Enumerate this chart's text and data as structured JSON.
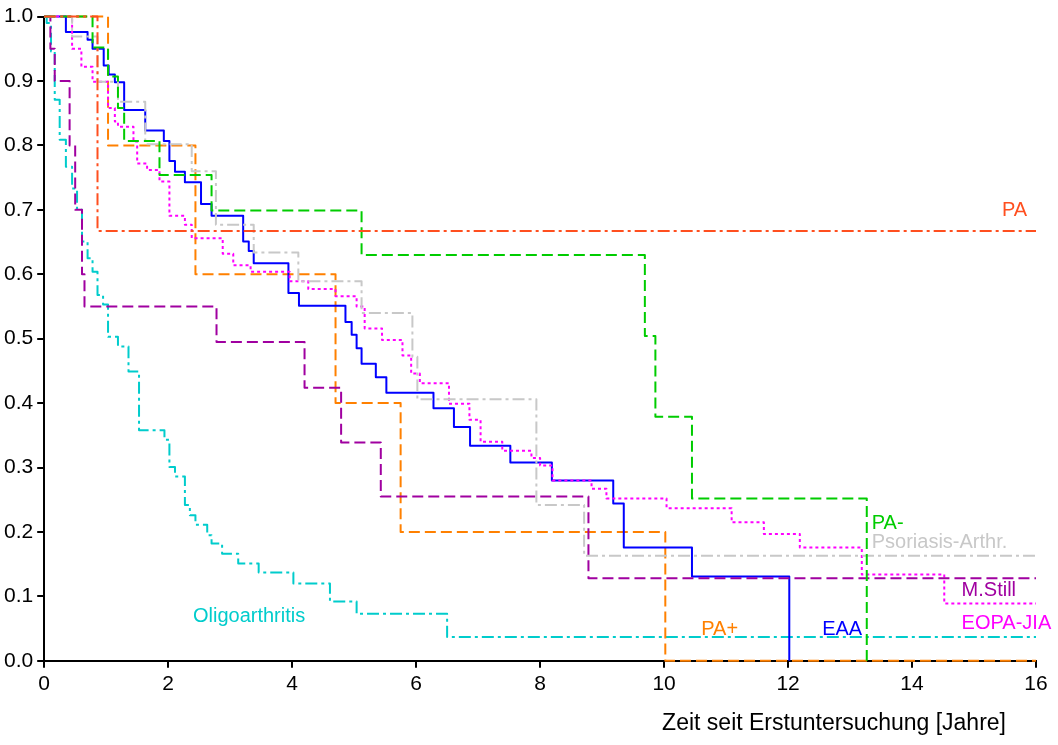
{
  "chart_data": {
    "type": "step",
    "xlabel": "Zeit seit Erstuntersuchung [Jahre]",
    "xlim": [
      0,
      16
    ],
    "xticks": [
      0,
      2,
      4,
      6,
      8,
      10,
      12,
      14,
      16
    ],
    "ylim": [
      0,
      1
    ],
    "yticks": [
      {
        "value": 0,
        "label": "0.0"
      },
      0.1,
      0.2,
      0.3,
      0.4,
      0.5,
      0.6,
      0.7,
      0.8,
      0.9,
      {
        "value": 1,
        "label": "1.0"
      }
    ],
    "grid": false,
    "legend": false,
    "marker": "none",
    "series": [
      {
        "name": "PA",
        "color": "#ff4f1f",
        "line_style": "dashdot",
        "x": [
          0,
          0.86,
          16
        ],
        "values": [
          1,
          0.667,
          0.667
        ]
      },
      {
        "name": "PA-",
        "color": "#00cc00",
        "line_style": "dashed",
        "x": [
          0,
          0.78,
          1.03,
          1.19,
          1.29,
          1.86,
          2.7,
          5.12,
          9.69,
          9.86,
          10.45,
          13.27
        ],
        "values": [
          1,
          0.952,
          0.907,
          0.858,
          0.807,
          0.754,
          0.699,
          0.63,
          0.504,
          0.379,
          0.252,
          0
        ]
      },
      {
        "name": "Psoriasis-Arthr.",
        "color": "#c8c8c8",
        "line_style": "dashdot",
        "x": [
          0,
          0.45,
          0.86,
          1.19,
          1.63,
          2.38,
          2.77,
          3.38,
          4.1,
          5.12,
          5.94,
          6.02,
          7.94,
          8.71,
          16
        ],
        "values": [
          1,
          0.969,
          0.899,
          0.868,
          0.802,
          0.76,
          0.677,
          0.634,
          0.589,
          0.54,
          0.472,
          0.406,
          0.242,
          0.163,
          0.163
        ]
      },
      {
        "name": "M.Still",
        "color": "#a000a0",
        "line_style": "dashed",
        "x": [
          0,
          0.1,
          0.17,
          0.41,
          0.5,
          0.61,
          0.65,
          2.78,
          4.2,
          4.79,
          5.43,
          8.78,
          16
        ],
        "values": [
          1,
          0.95,
          0.9,
          0.8,
          0.7,
          0.6,
          0.55,
          0.495,
          0.424,
          0.339,
          0.255,
          0.128,
          0.128
        ]
      },
      {
        "name": "EOPA-JIA",
        "color": "#ff00ff",
        "line_style": "dotted",
        "x": [
          0,
          0.45,
          0.6,
          0.78,
          1.03,
          1.14,
          1.19,
          1.44,
          1.5,
          1.66,
          1.86,
          2.02,
          2.27,
          2.38,
          2.88,
          3.05,
          3.33,
          3.96,
          4.26,
          4.7,
          5.04,
          5.17,
          5.45,
          5.78,
          5.92,
          6.06,
          6.53,
          6.86,
          7.04,
          7.39,
          7.86,
          8.0,
          8.2,
          8.83,
          9.07,
          10.04,
          11.09,
          11.61,
          12.19,
          13.19,
          14.52,
          16
        ],
        "values": [
          1,
          0.95,
          0.922,
          0.899,
          0.858,
          0.837,
          0.829,
          0.806,
          0.772,
          0.762,
          0.744,
          0.691,
          0.677,
          0.656,
          0.632,
          0.614,
          0.604,
          0.589,
          0.577,
          0.566,
          0.55,
          0.516,
          0.498,
          0.474,
          0.446,
          0.431,
          0.399,
          0.374,
          0.34,
          0.326,
          0.315,
          0.303,
          0.28,
          0.267,
          0.252,
          0.237,
          0.215,
          0.197,
          0.176,
          0.134,
          0.089,
          0.089
        ]
      },
      {
        "name": "EAA",
        "color": "#0000ff",
        "line_style": "solid",
        "x": [
          0,
          0.35,
          0.7,
          0.78,
          0.96,
          1.04,
          1.14,
          1.29,
          1.63,
          1.93,
          2.02,
          2.11,
          2.27,
          2.53,
          2.7,
          3.21,
          3.3,
          3.38,
          3.94,
          4.11,
          4.86,
          4.96,
          5.04,
          5.12,
          5.35,
          5.52,
          6.28,
          6.61,
          6.87,
          7.52,
          8.19,
          9.18,
          9.35,
          10.45,
          12.02
        ],
        "values": [
          1,
          0.976,
          0.964,
          0.95,
          0.924,
          0.91,
          0.898,
          0.855,
          0.823,
          0.807,
          0.776,
          0.759,
          0.743,
          0.709,
          0.691,
          0.651,
          0.636,
          0.617,
          0.571,
          0.551,
          0.526,
          0.506,
          0.485,
          0.461,
          0.44,
          0.416,
          0.392,
          0.363,
          0.334,
          0.308,
          0.28,
          0.244,
          0.176,
          0.131,
          0
        ]
      },
      {
        "name": "PA+",
        "color": "#ff8000",
        "line_style": "dashed",
        "x": [
          0,
          1.03,
          2.44,
          4.7,
          5.75,
          10.02,
          16
        ],
        "values": [
          1,
          0.8,
          0.6,
          0.4,
          0.2,
          0,
          0
        ]
      },
      {
        "name": "Oligoarthritis",
        "color": "#00cccc",
        "line_style": "dashdot",
        "x": [
          0,
          0.04,
          0.11,
          0.17,
          0.25,
          0.35,
          0.45,
          0.53,
          0.61,
          0.7,
          0.78,
          0.86,
          0.95,
          1.03,
          1.19,
          1.36,
          1.53,
          1.94,
          2.02,
          2.11,
          2.27,
          2.35,
          2.44,
          2.63,
          2.7,
          2.87,
          3.13,
          3.46,
          4.02,
          4.61,
          5.04,
          6.5,
          16
        ],
        "values": [
          1,
          0.99,
          0.946,
          0.871,
          0.809,
          0.767,
          0.733,
          0.7,
          0.651,
          0.625,
          0.604,
          0.568,
          0.553,
          0.503,
          0.488,
          0.449,
          0.358,
          0.343,
          0.301,
          0.286,
          0.242,
          0.226,
          0.211,
          0.195,
          0.182,
          0.166,
          0.151,
          0.137,
          0.12,
          0.092,
          0.073,
          0.037,
          0.037
        ]
      }
    ]
  }
}
